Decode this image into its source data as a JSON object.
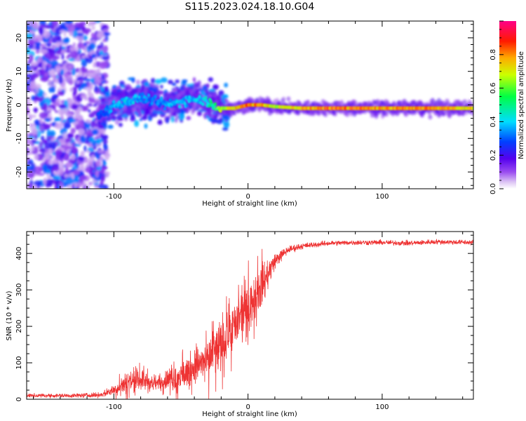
{
  "title": "S115.2023.024.18.10.G04",
  "chart_data": [
    {
      "type": "heatmap",
      "title": "",
      "xlabel": "Height of straight line (km)",
      "ylabel": "Frequency (Hz)",
      "xlim": [
        -165,
        168
      ],
      "ylim": [
        -25,
        25
      ],
      "xticks": [
        -100,
        0,
        100
      ],
      "yticks": [
        -20,
        -10,
        0,
        10,
        20
      ],
      "grid": false,
      "colorbar": {
        "label": "Normalized spectral amplitude",
        "range": [
          0,
          1
        ],
        "ticks": [
          0.0,
          0.2,
          0.4,
          0.6,
          0.8
        ],
        "colormap": "rainbow (white-lavender → purple → blue → cyan → green → yellow → red → magenta)"
      },
      "ridge": {
        "description": "Dominant spectral line; diffuse noise below about -110 km, converging to a narrow line near -1 Hz above about -20 km",
        "x": [
          -110,
          -100,
          -90,
          -80,
          -70,
          -60,
          -50,
          -40,
          -30,
          -20,
          -10,
          0,
          10,
          20,
          40,
          60,
          80,
          100,
          120,
          140,
          168
        ],
        "frequency": [
          -3,
          0,
          1,
          2,
          1,
          0,
          1,
          2,
          1,
          -1,
          -1,
          0,
          0,
          -0.5,
          -1,
          -1,
          -1,
          -1,
          -1,
          -1,
          -1
        ],
        "amplitude": [
          0.3,
          0.4,
          0.45,
          0.4,
          0.35,
          0.4,
          0.45,
          0.4,
          0.5,
          0.7,
          0.85,
          0.9,
          0.9,
          0.75,
          0.85,
          0.95,
          0.95,
          0.9,
          0.9,
          0.95,
          0.8
        ]
      }
    },
    {
      "type": "line",
      "title": "",
      "xlabel": "Height of straight line (km)",
      "ylabel": "SNR (10 * v/v)",
      "xlim": [
        -165,
        168
      ],
      "ylim": [
        0,
        460
      ],
      "xticks": [
        -100,
        0,
        100
      ],
      "yticks": [
        0,
        100,
        200,
        300,
        400
      ],
      "grid": false,
      "series": [
        {
          "color": "#ee3333",
          "description": "Noisy SNR trace: near 5-15 below -110 km, rising with strong scatter between -100 and 15 km, then leveling near 425-430",
          "x": [
            -165,
            -130,
            -110,
            -100,
            -90,
            -80,
            -70,
            -60,
            -50,
            -40,
            -30,
            -20,
            -10,
            0,
            10,
            20,
            30,
            40,
            60,
            80,
            100,
            120,
            140,
            168
          ],
          "y": [
            10,
            10,
            12,
            25,
            50,
            55,
            40,
            55,
            60,
            90,
            110,
            150,
            200,
            260,
            310,
            380,
            410,
            420,
            428,
            430,
            430,
            428,
            432,
            430
          ],
          "spread": [
            8,
            8,
            10,
            20,
            45,
            40,
            30,
            40,
            60,
            70,
            90,
            110,
            90,
            100,
            90,
            30,
            15,
            12,
            10,
            10,
            10,
            10,
            10,
            10
          ]
        }
      ]
    }
  ]
}
